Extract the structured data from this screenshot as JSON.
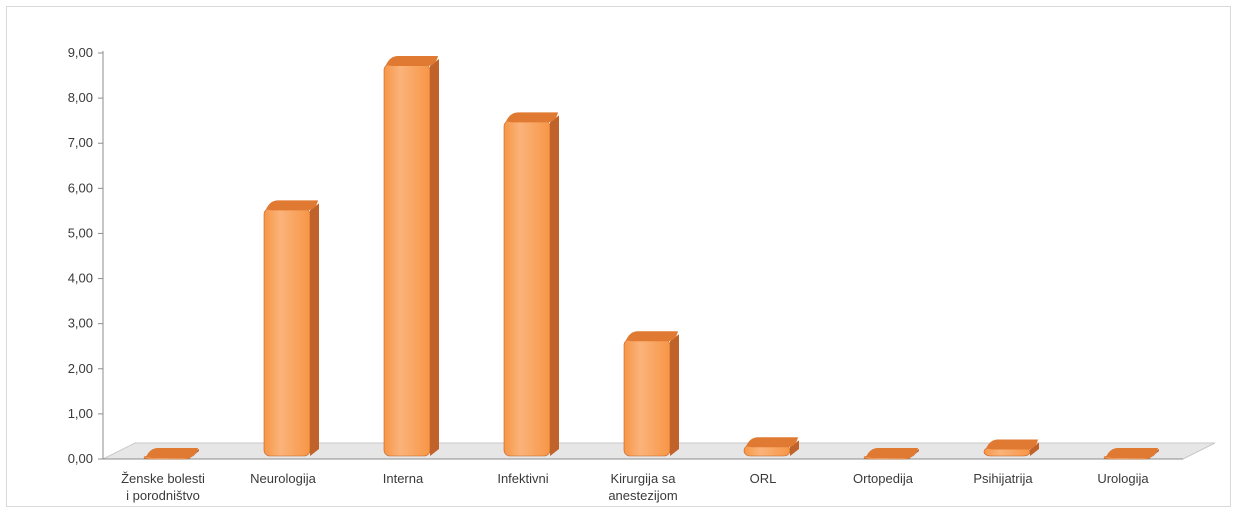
{
  "chart_data": {
    "type": "bar",
    "categories": [
      [
        "Ženske bolesti",
        "i porodništvo"
      ],
      [
        "Neurologija"
      ],
      [
        "Interna"
      ],
      [
        "Infektivni"
      ],
      [
        "Kirurgija sa",
        "anestezijom"
      ],
      [
        "ORL"
      ],
      [
        "Ortopedija"
      ],
      [
        "Psihijatrija"
      ],
      [
        "Urologija"
      ]
    ],
    "values": [
      0.0,
      5.6,
      8.8,
      7.55,
      2.7,
      0.35,
      0.0,
      0.3,
      0.0
    ],
    "y_ticks": [
      "0,00",
      "1,00",
      "2,00",
      "3,00",
      "4,00",
      "5,00",
      "6,00",
      "7,00",
      "8,00",
      "9,00"
    ],
    "ylim": [
      0,
      9
    ],
    "title": "",
    "xlabel": "",
    "ylabel": "",
    "grid": false,
    "legend": "none",
    "style": "3d-cylinder",
    "colors": {
      "bar_front": "#f79646",
      "bar_light": "#fab37a",
      "bar_side": "#c0632a",
      "bar_top": "#e07a32",
      "floor": "#e6e6e6",
      "axis": "#8c8c8c"
    }
  }
}
